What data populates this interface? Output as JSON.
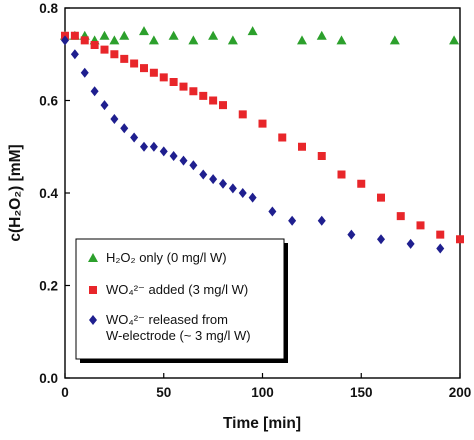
{
  "chart_data": {
    "type": "scatter",
    "xlabel": "Time [min]",
    "ylabel": "c(H₂O₂) [mM]",
    "xlim": [
      0,
      200
    ],
    "ylim": [
      0,
      0.8
    ],
    "xticks": [
      "0",
      "50",
      "100",
      "150",
      "200"
    ],
    "yticks": [
      "0.0",
      "0.2",
      "0.4",
      "0.6",
      "0.8"
    ],
    "grid": false,
    "legend_position": "bottom-left",
    "series": [
      {
        "name": "H₂O₂ only (0 mg/l W)",
        "marker": "triangle",
        "color": "#2ca02c",
        "x": [
          0,
          5,
          10,
          15,
          20,
          25,
          30,
          40,
          45,
          55,
          65,
          75,
          85,
          95,
          120,
          130,
          140,
          167,
          197
        ],
        "y": [
          0.74,
          0.74,
          0.74,
          0.73,
          0.74,
          0.73,
          0.74,
          0.75,
          0.73,
          0.74,
          0.73,
          0.74,
          0.73,
          0.75,
          0.73,
          0.74,
          0.73,
          0.73,
          0.73
        ]
      },
      {
        "name": "WO₄²⁻ added (3 mg/l W)",
        "marker": "square",
        "color": "#e8262a",
        "x": [
          0,
          5,
          10,
          15,
          20,
          25,
          30,
          35,
          40,
          45,
          50,
          55,
          60,
          65,
          70,
          75,
          80,
          90,
          100,
          110,
          120,
          130,
          140,
          150,
          160,
          170,
          180,
          190,
          200
        ],
        "y": [
          0.74,
          0.74,
          0.73,
          0.72,
          0.71,
          0.7,
          0.69,
          0.68,
          0.67,
          0.66,
          0.65,
          0.64,
          0.63,
          0.62,
          0.61,
          0.6,
          0.59,
          0.57,
          0.55,
          0.52,
          0.5,
          0.48,
          0.44,
          0.42,
          0.39,
          0.35,
          0.33,
          0.31,
          0.3
        ]
      },
      {
        "name": "WO₄²⁻ released from W-electrode (~ 3 mg/l W)",
        "marker": "diamond",
        "color": "#1f1f8f",
        "x": [
          0,
          5,
          10,
          15,
          20,
          25,
          30,
          35,
          40,
          45,
          50,
          55,
          60,
          65,
          70,
          75,
          80,
          85,
          90,
          95,
          105,
          115,
          130,
          145,
          160,
          175,
          190
        ],
        "y": [
          0.73,
          0.7,
          0.66,
          0.62,
          0.59,
          0.56,
          0.54,
          0.52,
          0.5,
          0.5,
          0.49,
          0.48,
          0.47,
          0.46,
          0.44,
          0.43,
          0.42,
          0.41,
          0.4,
          0.39,
          0.36,
          0.34,
          0.34,
          0.31,
          0.3,
          0.29,
          0.28
        ]
      }
    ]
  }
}
